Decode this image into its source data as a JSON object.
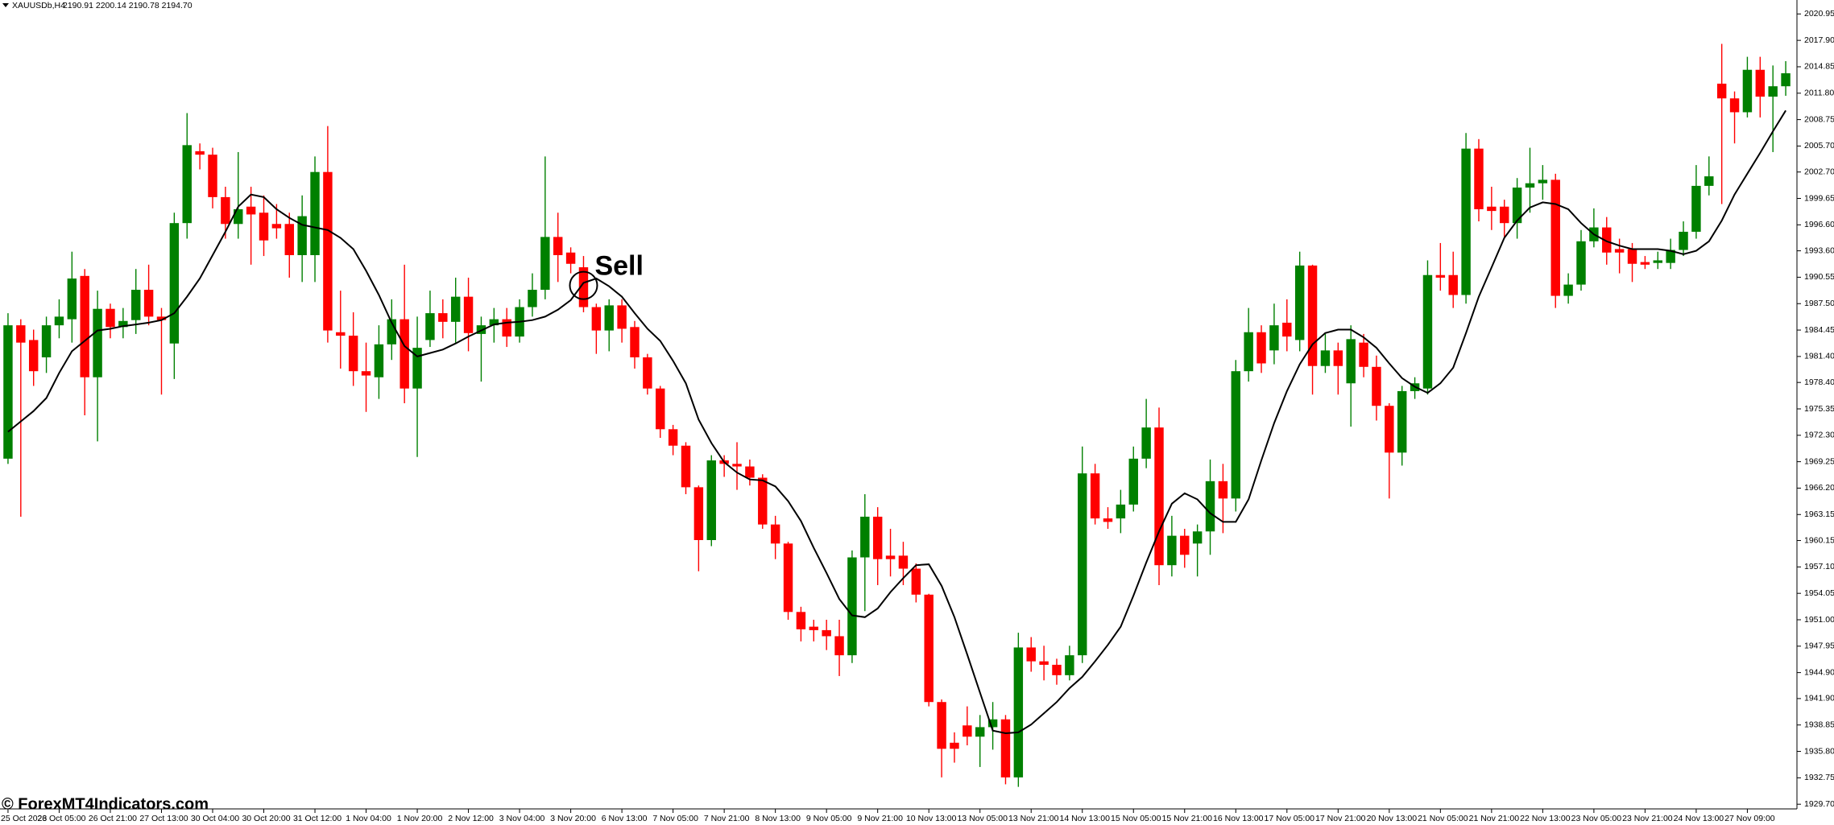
{
  "chart_data": {
    "type": "candlestick",
    "title": "XAUUSDb,H4",
    "subtitle": "2190.91 2200.14 2190.78 2194.70",
    "annotation": "Sell",
    "watermark": "© ForexMT4Indicators.com",
    "up_color": "#008000",
    "down_color": "#ff0000",
    "ylim": [
      1929.16,
      2022.56
    ],
    "yticks": [
      2020.95,
      {
        "value": 2017.9,
        "label": "2017.90"
      },
      2014.85,
      {
        "value": 2011.8,
        "label": "2011.80"
      },
      2008.75,
      {
        "value": 2005.7,
        "label": "2005.70"
      },
      {
        "value": 2002.7,
        "label": "2002.70"
      },
      1999.65,
      {
        "value": 1996.6,
        "label": "1996.60"
      },
      {
        "value": 1993.6,
        "label": "1993.60"
      },
      1990.55,
      {
        "value": 1987.5,
        "label": "1987.50"
      },
      1984.45,
      {
        "value": 1981.4,
        "label": "1981.40"
      },
      {
        "value": 1978.4,
        "label": "1978.40"
      },
      1975.35,
      {
        "value": 1972.3,
        "label": "1972.30"
      },
      1969.25,
      {
        "value": 1966.2,
        "label": "1966.20"
      },
      1963.15,
      1960.15,
      {
        "value": 1957.1,
        "label": "1957.10"
      },
      1954.05,
      {
        "value": 1951,
        "label": "1951.00"
      },
      1947.95,
      {
        "value": 1944.9,
        "label": "1944.90"
      },
      {
        "value": 1941.9,
        "label": "1941.90"
      },
      1938.85,
      {
        "value": 1935.8,
        "label": "1935.80"
      },
      1932.75,
      {
        "value": 1929.7,
        "label": "1929.70"
      }
    ],
    "categories": [
      "25 Oct 2023",
      null,
      null,
      null,
      "26 Oct 05:00",
      null,
      null,
      null,
      "26 Oct 21:00",
      null,
      null,
      null,
      "27 Oct 13:00",
      null,
      null,
      null,
      "30 Oct 04:00",
      null,
      null,
      null,
      "30 Oct 20:00",
      null,
      null,
      null,
      "31 Oct 12:00",
      null,
      null,
      null,
      "1 Nov 04:00",
      null,
      null,
      null,
      "1 Nov 20:00",
      null,
      null,
      null,
      "2 Nov 12:00",
      null,
      null,
      null,
      "3 Nov 04:00",
      null,
      null,
      null,
      "3 Nov 20:00",
      null,
      null,
      null,
      "6 Nov 13:00",
      null,
      null,
      null,
      "7 Nov 05:00",
      null,
      null,
      null,
      "7 Nov 21:00",
      null,
      null,
      null,
      "8 Nov 13:00",
      null,
      null,
      null,
      "9 Nov 05:00",
      null,
      null,
      null,
      "9 Nov 21:00",
      null,
      null,
      null,
      "10 Nov 13:00",
      null,
      null,
      null,
      "13 Nov 05:00",
      null,
      null,
      null,
      "13 Nov 21:00",
      null,
      null,
      null,
      "14 Nov 13:00",
      null,
      null,
      null,
      "15 Nov 05:00",
      null,
      null,
      null,
      "15 Nov 21:00",
      null,
      null,
      null,
      "16 Nov 13:00",
      null,
      null,
      null,
      "17 Nov 05:00",
      null,
      null,
      null,
      "17 Nov 21:00",
      null,
      null,
      null,
      "20 Nov 13:00",
      null,
      null,
      null,
      "21 Nov 05:00",
      null,
      null,
      null,
      "21 Nov 21:00",
      null,
      null,
      null,
      "22 Nov 13:00",
      null,
      null,
      null,
      "23 Nov 05:00",
      null,
      null,
      null,
      "23 Nov 21:00",
      null,
      null,
      null,
      "24 Nov 13:00",
      null,
      null,
      null,
      "27 Nov 09:00",
      null,
      null,
      null
    ],
    "open": [
      1969.6,
      1985.0,
      1983.3,
      1981.3,
      1985.0,
      1985.7,
      1990.7,
      1979.0,
      1986.9,
      1984.8,
      1985.6,
      1989.1,
      1986.0,
      1982.9,
      1996.8,
      2005.1,
      2004.7,
      1999.8,
      1996.7,
      1998.7,
      1998.0,
      1996.7,
      1996.7,
      1993.1,
      1993.1,
      2002.7,
      1984.2,
      1983.8,
      1979.7,
      1979.0,
      1982.8,
      1985.7,
      1977.7,
      1983.3,
      1986.4,
      1985.4,
      1988.3,
      1984.0,
      1985.0,
      1985.7,
      1983.7,
      1987.1,
      1989.1,
      1995.2,
      1993.4,
      1991.7,
      1987.1,
      1984.4,
      1987.3,
      1984.8,
      1981.3,
      1977.7,
      1973.0,
      1971.1,
      1966.3,
      1960.2,
      1969.4,
      1969.0,
      1968.7,
      1967.4,
      1962.0,
      1959.8,
      1951.9,
      1950.2,
      1949.8,
      1949.1,
      1946.9,
      1958.2,
      1962.9,
      1958.4,
      1958.4,
      1956.9,
      1953.9,
      1941.5,
      1936.8,
      1938.8,
      1937.5,
      1938.6,
      1939.5,
      1932.8,
      1947.8,
      1946.2,
      1945.8,
      1944.6,
      1946.9,
      1967.9,
      1962.7,
      1962.7,
      1964.3,
      1969.6,
      1973.2,
      1957.3,
      1960.7,
      1959.8,
      1961.2,
      1967.0,
      1965.0,
      1979.7,
      1984.2,
      1982.1,
      1985.3,
      1983.3,
      1991.9,
      1980.3,
      1982.1,
      1978.3,
      1983.0,
      1980.2,
      1975.7,
      1970.3,
      1977.4,
      1977.7,
      1990.8,
      1990.8,
      1988.5,
      2005.4,
      1998.7,
      1998.7,
      1996.8,
      2000.9,
      2001.4,
      2001.8,
      1988.4,
      1989.7,
      1994.7,
      1996.3,
      1993.8,
      1993.8,
      1992.3,
      1992.2,
      1992.2,
      1993.7,
      1995.8,
      2001.1,
      2012.9,
      2011.2,
      2009.6,
      2014.5,
      2011.4,
      2012.6
    ],
    "high": [
      1986.4,
      1985.7,
      1984.5,
      1986.0,
      1988.0,
      1993.5,
      1991.5,
      1989.0,
      1987.5,
      1987.0,
      1991.5,
      1992.0,
      1987.0,
      1998.0,
      2009.5,
      2006.0,
      2005.5,
      2001.0,
      2005.0,
      2001.0,
      2000.0,
      1999.0,
      1998.0,
      2000.0,
      2004.5,
      2008.0,
      1989.0,
      1986.5,
      1983.0,
      1985.0,
      1988.0,
      1992.0,
      1986.0,
      1989.0,
      1988.0,
      1990.5,
      1990.5,
      1986.0,
      1987.0,
      1987.0,
      1988.0,
      1991.0,
      2004.5,
      1998.0,
      1994.0,
      1993.0,
      1987.5,
      1988.0,
      1988.0,
      1985.5,
      1981.7,
      1978.0,
      1973.5,
      1971.5,
      1966.5,
      1970.0,
      1970.0,
      1971.5,
      1969.5,
      1967.8,
      1963.0,
      1960.0,
      1952.5,
      1951.0,
      1951.0,
      1951.0,
      1959.0,
      1965.5,
      1964.0,
      1961.5,
      1960.0,
      1957.5,
      1954.0,
      1941.8,
      1938.0,
      1941.0,
      1940.0,
      1941.5,
      1940.0,
      1949.5,
      1949.0,
      1948.0,
      1946.5,
      1948.0,
      1971.0,
      1969.0,
      1964.0,
      1966.0,
      1971.0,
      1976.5,
      1975.5,
      1963.0,
      1961.5,
      1962.0,
      1969.5,
      1969.0,
      1981.0,
      1987.0,
      1985.0,
      1987.5,
      1988.0,
      1993.5,
      1992.0,
      1984.0,
      1983.0,
      1985.0,
      1984.0,
      1981.5,
      1976.0,
      1978.0,
      1979.0,
      1992.5,
      1994.5,
      1993.5,
      2007.2,
      2006.5,
      2001.0,
      1999.5,
      2002.0,
      2005.5,
      2003.5,
      2002.5,
      1991.0,
      1996.0,
      1998.5,
      1997.5,
      1995.0,
      1994.5,
      1993.0,
      1993.5,
      1995.0,
      1997.0,
      2003.5,
      2004.5,
      2017.5,
      2012.0,
      2016.0,
      2016.0,
      2015.0,
      2015.5
    ],
    "low": [
      1969.0,
      1962.9,
      1978.0,
      1979.5,
      1983.5,
      1983.0,
      1974.6,
      1971.6,
      1983.5,
      1983.5,
      1984.0,
      1985.0,
      1977.0,
      1978.8,
      1995.0,
      2003.0,
      1998.5,
      1995.0,
      1995.0,
      1992.0,
      1993.0,
      1995.0,
      1990.5,
      1990.0,
      1990.0,
      1983.0,
      1980.0,
      1978.0,
      1975.0,
      1976.5,
      1981.0,
      1976.0,
      1969.8,
      1982.5,
      1983.5,
      1983.0,
      1982.0,
      1978.5,
      1983.0,
      1982.5,
      1983.0,
      1986.0,
      1988.0,
      1990.0,
      1991.0,
      1986.5,
      1981.7,
      1982.0,
      1983.0,
      1980.0,
      1977.0,
      1972.0,
      1970.0,
      1965.5,
      1956.6,
      1959.5,
      1967.5,
      1966.0,
      1966.5,
      1961.5,
      1958.0,
      1951.0,
      1948.5,
      1948.5,
      1947.5,
      1944.5,
      1946.0,
      1952.0,
      1955.0,
      1956.0,
      1955.0,
      1953.0,
      1941.0,
      1932.8,
      1934.5,
      1936.5,
      1934.0,
      1936.0,
      1932.0,
      1931.7,
      1945.0,
      1944.0,
      1943.5,
      1944.0,
      1946.0,
      1962.0,
      1961.5,
      1961.0,
      1963.5,
      1968.5,
      1955.0,
      1956.0,
      1957.0,
      1956.0,
      1958.5,
      1961.0,
      1963.5,
      1978.5,
      1979.5,
      1980.5,
      1982.0,
      1982.0,
      1977.0,
      1979.5,
      1977.0,
      1973.3,
      1979.0,
      1974.0,
      1965.0,
      1968.8,
      1976.5,
      1977.0,
      1989.0,
      1987.0,
      1987.5,
      1997.0,
      1996.0,
      1995.0,
      1995.0,
      1998.0,
      1999.5,
      1987.0,
      1987.5,
      1989.0,
      1994.0,
      1992.0,
      1991.0,
      1990.0,
      1991.5,
      1991.5,
      1991.5,
      1993.0,
      1995.0,
      2000.0,
      1999.0,
      2006.0,
      2009.0,
      2009.0,
      2005.0,
      2011.5
    ],
    "close": [
      1985.0,
      1983.0,
      1979.7,
      1985.0,
      1986.0,
      1990.4,
      1979.0,
      1986.9,
      1984.8,
      1985.5,
      1989.1,
      1986.0,
      1985.6,
      1996.8,
      2005.8,
      2004.7,
      1999.8,
      1996.7,
      1998.4,
      1997.8,
      1994.8,
      1996.2,
      1993.1,
      1997.6,
      2002.7,
      1984.4,
      1983.8,
      1979.7,
      1979.2,
      1982.8,
      1985.7,
      1977.7,
      1982.4,
      1986.4,
      1985.4,
      1988.3,
      1984.1,
      1985.0,
      1985.7,
      1983.7,
      1987.1,
      1989.1,
      1995.2,
      1993.1,
      1992.1,
      1987.1,
      1984.4,
      1987.3,
      1984.6,
      1981.3,
      1977.7,
      1973.0,
      1971.1,
      1966.3,
      1960.2,
      1969.4,
      1969.0,
      1968.7,
      1967.4,
      1962.0,
      1959.8,
      1951.9,
      1949.9,
      1949.8,
      1949.1,
      1946.9,
      1958.2,
      1962.9,
      1958.0,
      1958.0,
      1956.9,
      1953.9,
      1941.5,
      1936.1,
      1936.1,
      1937.5,
      1938.6,
      1939.5,
      1932.8,
      1947.8,
      1946.2,
      1945.8,
      1944.6,
      1946.9,
      1967.9,
      1962.7,
      1962.3,
      1964.3,
      1969.6,
      1973.2,
      1957.3,
      1960.7,
      1958.5,
      1961.2,
      1967.0,
      1965.0,
      1979.7,
      1984.2,
      1980.6,
      1985.0,
      1983.7,
      1991.9,
      1980.3,
      1982.1,
      1980.3,
      1983.4,
      1980.2,
      1975.7,
      1970.3,
      1977.4,
      1978.3,
      1990.8,
      1990.5,
      1988.5,
      2005.4,
      1998.4,
      1998.2,
      1996.8,
      2000.9,
      2001.4,
      2001.8,
      1988.4,
      1989.7,
      1994.7,
      1996.3,
      1993.4,
      1993.4,
      1992.1,
      1992.0,
      1992.5,
      1993.7,
      1995.8,
      2001.1,
      2002.2,
      2011.2,
      2009.6,
      2014.5,
      2011.4,
      2012.6,
      2014.1
    ],
    "ma": {
      "color": "#000000",
      "values": [
        1972.7,
        1973.9,
        1975.1,
        1976.6,
        1979.5,
        1982.0,
        1983.2,
        1984.4,
        1984.6,
        1984.9,
        1985.1,
        1985.3,
        1985.6,
        1986.4,
        1988.3,
        1990.4,
        1993.1,
        1995.8,
        1998.7,
        2000.1,
        1999.8,
        1998.4,
        1997.4,
        1996.6,
        1996.3,
        1996.0,
        1995.1,
        1993.8,
        1991.3,
        1988.5,
        1985.3,
        1982.6,
        1981.4,
        1981.8,
        1982.2,
        1982.9,
        1983.7,
        1984.4,
        1985.1,
        1985.3,
        1985.4,
        1985.6,
        1986.0,
        1986.8,
        1987.9,
        1989.9,
        1990.4,
        1989.5,
        1988.3,
        1986.4,
        1984.6,
        1983.2,
        1980.9,
        1978.3,
        1974.1,
        1971.4,
        1969.2,
        1968.0,
        1967.2,
        1967.1,
        1966.4,
        1964.7,
        1962.4,
        1959.3,
        1956.4,
        1953.4,
        1951.5,
        1951.3,
        1952.3,
        1954.2,
        1955.8,
        1957.3,
        1957.4,
        1954.9,
        1951.3,
        1947.0,
        1942.6,
        1938.2,
        1937.9,
        1938.0,
        1938.9,
        1940.2,
        1941.5,
        1943.1,
        1944.4,
        1946.2,
        1948.1,
        1950.2,
        1953.8,
        1957.6,
        1961.2,
        1964.4,
        1965.6,
        1964.9,
        1963.3,
        1962.3,
        1962.3,
        1964.9,
        1969.4,
        1973.7,
        1977.4,
        1980.5,
        1982.8,
        1984.1,
        1984.5,
        1984.5,
        1983.6,
        1982.4,
        1980.6,
        1978.9,
        1977.9,
        1977.2,
        1978.3,
        1980.1,
        1984.1,
        1988.3,
        1991.7,
        1995.1,
        1997.1,
        1998.6,
        1999.2,
        1999.0,
        1998.4,
        1996.8,
        1995.5,
        1994.7,
        1994.2,
        1993.8,
        1993.8,
        1993.8,
        1993.6,
        1993.2,
        1993.6,
        1994.7,
        1997.1,
        2000.1,
        2002.5,
        2004.9,
        2007.4,
        2009.8
      ]
    }
  }
}
